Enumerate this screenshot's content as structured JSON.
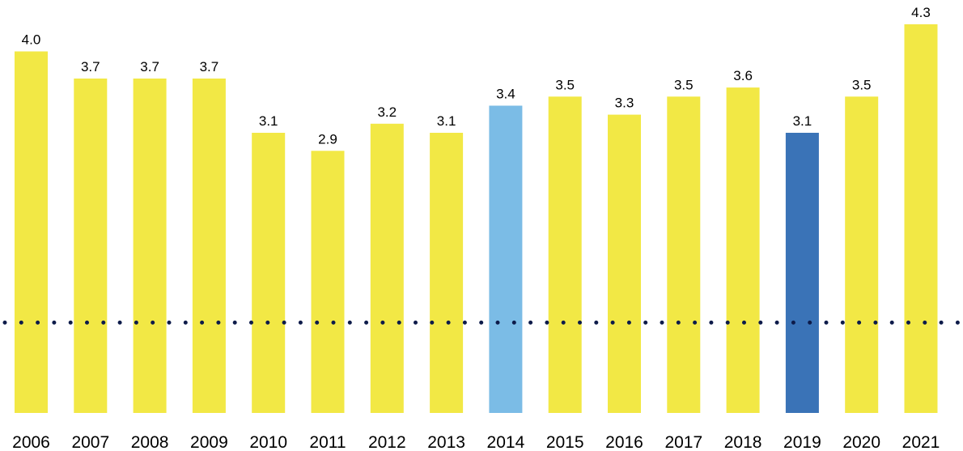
{
  "chart_data": {
    "type": "bar",
    "categories": [
      "2006",
      "2007",
      "2008",
      "2009",
      "2010",
      "2011",
      "2012",
      "2013",
      "2014",
      "2015",
      "2016",
      "2017",
      "2018",
      "2019",
      "2020",
      "2021"
    ],
    "values": [
      4.0,
      3.7,
      3.7,
      3.7,
      3.1,
      2.9,
      3.2,
      3.1,
      3.4,
      3.5,
      3.3,
      3.5,
      3.6,
      3.1,
      3.5,
      4.3
    ],
    "value_labels": [
      "4.0",
      "3.7",
      "3.7",
      "3.7",
      "3.1",
      "2.9",
      "3.2",
      "3.1",
      "3.4",
      "3.5",
      "3.3",
      "3.5",
      "3.6",
      "3.1",
      "3.5",
      "4.3"
    ],
    "bar_colors": [
      "#f2e845",
      "#f2e845",
      "#f2e845",
      "#f2e845",
      "#f2e845",
      "#f2e845",
      "#f2e845",
      "#f2e845",
      "#7bbce6",
      "#f2e845",
      "#f2e845",
      "#f2e845",
      "#f2e845",
      "#3a73b7",
      "#f2e845",
      "#f2e845"
    ],
    "reference_line": {
      "value": 1.0,
      "style": "dotted",
      "color": "#0d1b4a"
    },
    "title": "",
    "xlabel": "",
    "ylabel": "",
    "ylim": [
      0,
      4.3
    ],
    "grid": false,
    "legend": "none"
  }
}
